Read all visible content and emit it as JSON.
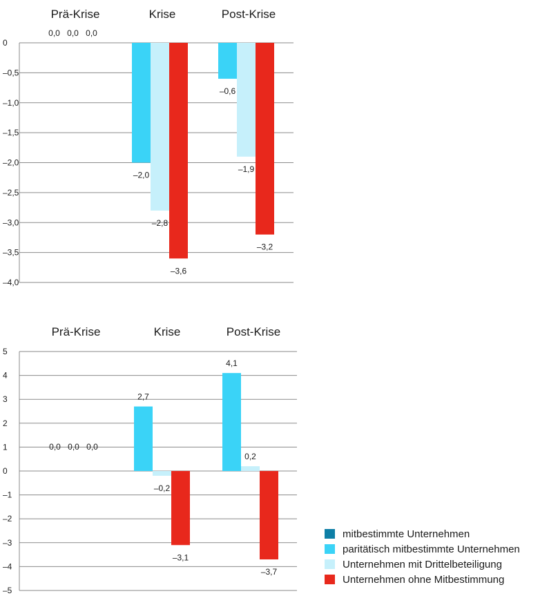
{
  "chart_data": [
    {
      "type": "bar",
      "categories": [
        "Prä-Krise",
        "Krise",
        "Post-Krise"
      ],
      "ylim": [
        -4.0,
        0
      ],
      "yticks": [
        "0",
        "–0,5",
        "–1,0",
        "–1,5",
        "–2,0",
        "–2,5",
        "–3,0",
        "–3,5",
        "–4,0"
      ],
      "series": [
        {
          "name": "paritätisch mitbestimmte Unternehmen",
          "values": [
            0.0,
            -2.0,
            -0.6
          ],
          "labels": [
            "0,0",
            "–2,0",
            "–0,6"
          ]
        },
        {
          "name": "Unternehmen mit Drittelbeteiligung",
          "values": [
            0.0,
            -2.8,
            -1.9
          ],
          "labels": [
            "0,0",
            "–2,8",
            "–1,9"
          ]
        },
        {
          "name": "Unternehmen ohne Mitbestimmung",
          "values": [
            0.0,
            -3.6,
            -3.2
          ],
          "labels": [
            "0,0",
            "–3,6",
            "–3,2"
          ]
        }
      ]
    },
    {
      "type": "bar",
      "categories": [
        "Prä-Krise",
        "Krise",
        "Post-Krise"
      ],
      "ylim": [
        -5,
        5
      ],
      "yticks": [
        "5",
        "4",
        "3",
        "2",
        "1",
        "0",
        "–1",
        "–2",
        "–3",
        "–4",
        "–5"
      ],
      "series": [
        {
          "name": "paritätisch mitbestimmte Unternehmen",
          "values": [
            0.0,
            2.7,
            4.1
          ],
          "labels": [
            "0,0",
            "2,7",
            "4,1"
          ]
        },
        {
          "name": "Unternehmen mit Drittelbeteiligung",
          "values": [
            0.0,
            -0.2,
            0.2
          ],
          "labels": [
            "0,0",
            "–0,2",
            "0,2"
          ]
        },
        {
          "name": "Unternehmen ohne Mitbestimmung",
          "values": [
            0.0,
            -3.1,
            -3.7
          ],
          "labels": [
            "0,0",
            "–3,1",
            "–3,7"
          ]
        }
      ]
    }
  ],
  "colors": {
    "mitbestimmt": "#0e7fa6",
    "paritaetisch": "#3ad3f7",
    "drittel": "#c6f0fb",
    "ohne": "#e8281c"
  },
  "legend": [
    {
      "label": "mitbestimmte Unternehmen",
      "color": "#0e7fa6"
    },
    {
      "label": "paritätisch mitbestimmte Unternehmen",
      "color": "#3ad3f7"
    },
    {
      "label": "Unternehmen mit Drittelbeteiligung",
      "color": "#c6f0fb"
    },
    {
      "label": "Unternehmen ohne Mitbestimmung",
      "color": "#e8281c"
    }
  ]
}
